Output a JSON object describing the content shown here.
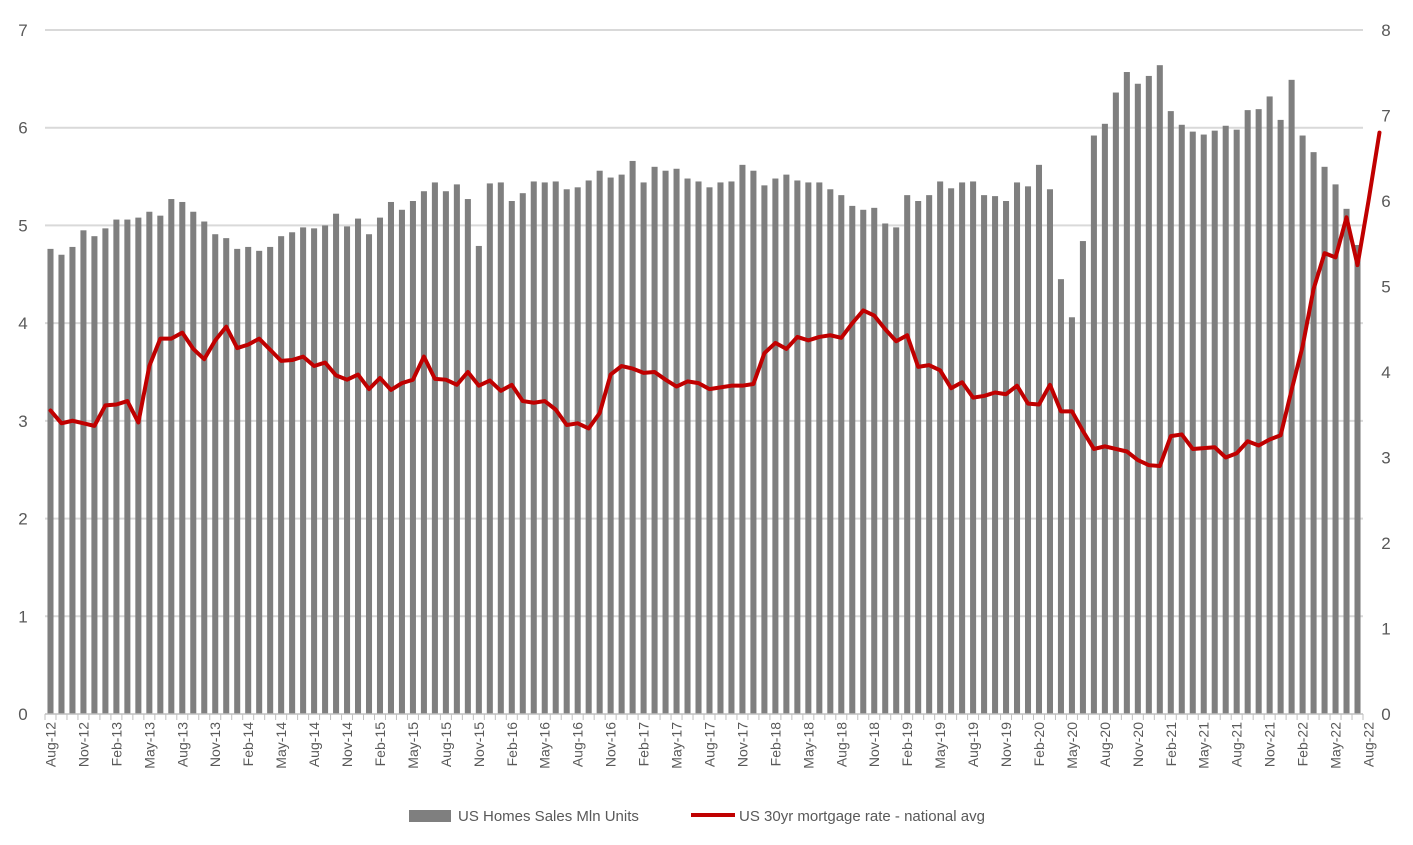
{
  "chart_data": {
    "type": "bar",
    "x_start": "Aug-12",
    "x_end": "Sep-22",
    "grid": true,
    "legend_position": "bottom",
    "y_left": {
      "range": [
        0,
        7
      ],
      "ticks": [
        "0",
        "1",
        "2",
        "3",
        "4",
        "5",
        "6",
        "7"
      ]
    },
    "y_right": {
      "range": [
        0,
        8
      ],
      "ticks": [
        "0",
        "1",
        "2",
        "3",
        "4",
        "5",
        "6",
        "7",
        "8"
      ]
    },
    "x_tick_labels": [
      "Aug-12",
      "Nov-12",
      "Feb-13",
      "May-13",
      "Aug-13",
      "Nov-13",
      "Feb-14",
      "May-14",
      "Aug-14",
      "Nov-14",
      "Feb-15",
      "May-15",
      "Aug-15",
      "Nov-15",
      "Feb-16",
      "May-16",
      "Aug-16",
      "Nov-16",
      "Feb-17",
      "May-17",
      "Aug-17",
      "Nov-17",
      "Feb-18",
      "May-18",
      "Aug-18",
      "Nov-18",
      "Feb-19",
      "May-19",
      "Aug-19",
      "Nov-19",
      "Feb-20",
      "May-20",
      "Aug-20",
      "Nov-20",
      "Feb-21",
      "May-21",
      "Aug-21",
      "Nov-21",
      "Feb-22",
      "May-22",
      "Aug-22"
    ],
    "series": [
      {
        "name": "US Homes Sales Mln Units",
        "type": "bar",
        "axis": "left",
        "color": "#7f7f7f",
        "values": [
          4.76,
          4.7,
          4.78,
          4.95,
          4.89,
          4.97,
          5.06,
          5.06,
          5.08,
          5.14,
          5.1,
          5.27,
          5.24,
          5.14,
          5.04,
          4.91,
          4.87,
          4.76,
          4.78,
          4.74,
          4.78,
          4.89,
          4.93,
          4.98,
          4.97,
          5.0,
          5.12,
          4.99,
          5.07,
          4.91,
          5.08,
          5.24,
          5.16,
          5.25,
          5.35,
          5.44,
          5.35,
          5.42,
          5.27,
          4.79,
          5.43,
          5.44,
          5.25,
          5.33,
          5.45,
          5.44,
          5.45,
          5.37,
          5.39,
          5.46,
          5.56,
          5.49,
          5.52,
          5.66,
          5.44,
          5.6,
          5.56,
          5.58,
          5.48,
          5.45,
          5.39,
          5.44,
          5.45,
          5.62,
          5.56,
          5.41,
          5.48,
          5.52,
          5.46,
          5.44,
          5.44,
          5.37,
          5.31,
          5.2,
          5.16,
          5.18,
          5.02,
          4.98,
          5.31,
          5.25,
          5.31,
          5.45,
          5.38,
          5.44,
          5.45,
          5.31,
          5.3,
          5.25,
          5.44,
          5.4,
          5.62,
          5.37,
          4.45,
          4.06,
          4.84,
          5.92,
          6.04,
          6.36,
          6.57,
          6.45,
          6.53,
          6.64,
          6.17,
          6.03,
          5.96,
          5.93,
          5.97,
          6.02,
          5.98,
          6.18,
          6.19,
          6.32,
          6.08,
          6.49,
          5.92,
          5.75,
          5.6,
          5.42,
          5.17,
          4.8
        ],
        "note": "Monthly bars from Aug-12 to Sep-22 (122 values)"
      },
      {
        "name": "US 30yr mortgage rate - national avg",
        "type": "line",
        "axis": "right",
        "color": "#c00000",
        "values": [
          3.55,
          3.4,
          3.43,
          3.4,
          3.37,
          3.61,
          3.62,
          3.66,
          3.41,
          4.07,
          4.39,
          4.39,
          4.46,
          4.27,
          4.15,
          4.37,
          4.53,
          4.28,
          4.32,
          4.39,
          4.26,
          4.13,
          4.14,
          4.18,
          4.07,
          4.11,
          3.96,
          3.91,
          3.97,
          3.8,
          3.93,
          3.79,
          3.87,
          3.91,
          4.18,
          3.92,
          3.91,
          3.85,
          4.0,
          3.84,
          3.9,
          3.78,
          3.85,
          3.66,
          3.64,
          3.66,
          3.56,
          3.38,
          3.4,
          3.34,
          3.52,
          3.97,
          4.07,
          4.04,
          3.99,
          4.0,
          3.91,
          3.83,
          3.89,
          3.87,
          3.8,
          3.82,
          3.84,
          3.84,
          3.86,
          4.22,
          4.34,
          4.27,
          4.41,
          4.37,
          4.41,
          4.43,
          4.4,
          4.57,
          4.72,
          4.66,
          4.5,
          4.36,
          4.43,
          4.06,
          4.08,
          4.02,
          3.81,
          3.88,
          3.7,
          3.72,
          3.76,
          3.74,
          3.84,
          3.63,
          3.62,
          3.85,
          3.54,
          3.54,
          3.31,
          3.1,
          3.13,
          3.1,
          3.07,
          2.97,
          2.91,
          2.9,
          3.25,
          3.27,
          3.1,
          3.11,
          3.12,
          3.0,
          3.05,
          3.19,
          3.14,
          3.21,
          3.26,
          3.79,
          4.3,
          4.97,
          5.39,
          5.34,
          5.81,
          5.25,
          6.0,
          6.8
        ],
        "note": "Monthly line from Aug-12 to Sep-22 (122 values)"
      }
    ]
  }
}
